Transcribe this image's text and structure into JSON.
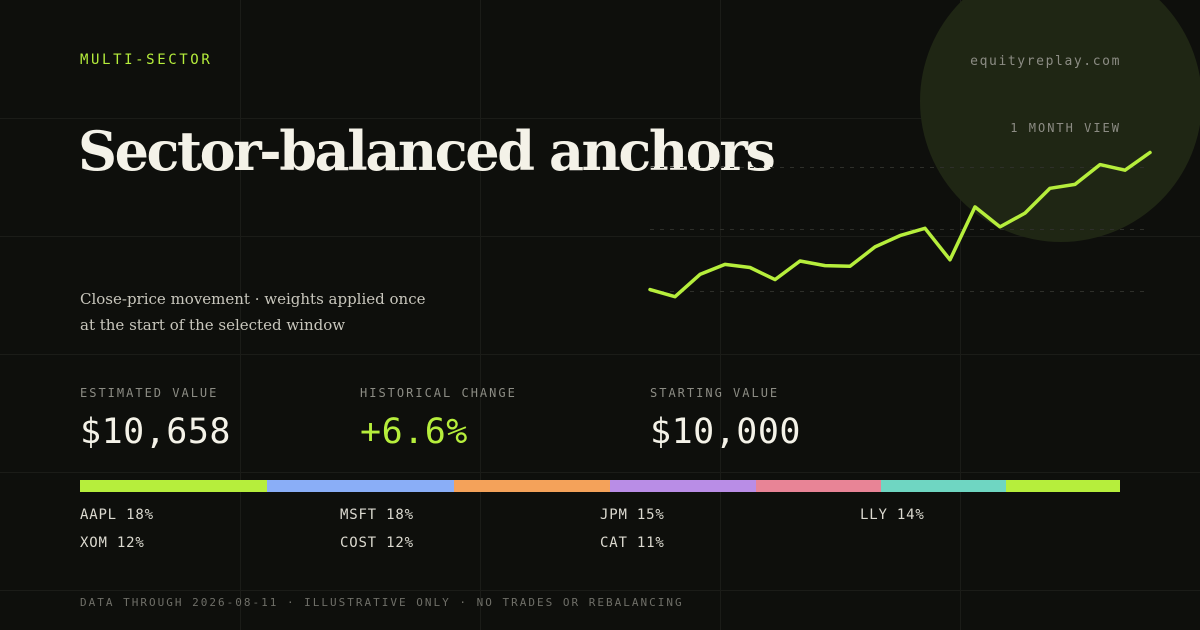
{
  "header": {
    "category": "MULTI-SECTOR",
    "site": "equityreplay.com",
    "view_label": "1 MONTH VIEW"
  },
  "title": "Sector-balanced anchors",
  "subtitle": {
    "line1": "Close-price movement · weights applied once",
    "line2": "at the start of the selected window"
  },
  "stats": {
    "estimated": {
      "label": "ESTIMATED VALUE",
      "value": "$10,658"
    },
    "change": {
      "label": "HISTORICAL CHANGE",
      "value": "+6.6%"
    },
    "starting": {
      "label": "STARTING VALUE",
      "value": "$10,000"
    }
  },
  "allocation": [
    {
      "ticker": "AAPL",
      "weight_label": "18%",
      "weight": 18,
      "color": "#b6ee3c"
    },
    {
      "ticker": "MSFT",
      "weight_label": "18%",
      "weight": 18,
      "color": "#8aaef7"
    },
    {
      "ticker": "JPM",
      "weight_label": "15%",
      "weight": 15,
      "color": "#f4a25a"
    },
    {
      "ticker": "LLY",
      "weight_label": "14%",
      "weight": 14,
      "color": "#b98de6"
    },
    {
      "ticker": "XOM",
      "weight_label": "12%",
      "weight": 12,
      "color": "#e88496"
    },
    {
      "ticker": "COST",
      "weight_label": "12%",
      "weight": 12,
      "color": "#6fd6c2"
    },
    {
      "ticker": "CAT",
      "weight_label": "11%",
      "weight": 11,
      "color": "#b6ee3c"
    }
  ],
  "footnote": "DATA THROUGH 2026-08-11 · ILLUSTRATIVE ONLY · NO TRADES OR REBALANCING",
  "colors": {
    "accent": "#b6ee3c",
    "background": "#0e0f0c",
    "text": "#f4f2e8",
    "muted": "#8c8c84"
  },
  "chart_data": {
    "type": "line",
    "values": [
      10000,
      9966,
      10073,
      10121,
      10106,
      10048,
      10137,
      10115,
      10112,
      10205,
      10259,
      10294,
      10143,
      10397,
      10301,
      10367,
      10486,
      10505,
      10600,
      10573,
      10658
    ],
    "ylim": [
      9950,
      10670
    ],
    "grid": false
  }
}
